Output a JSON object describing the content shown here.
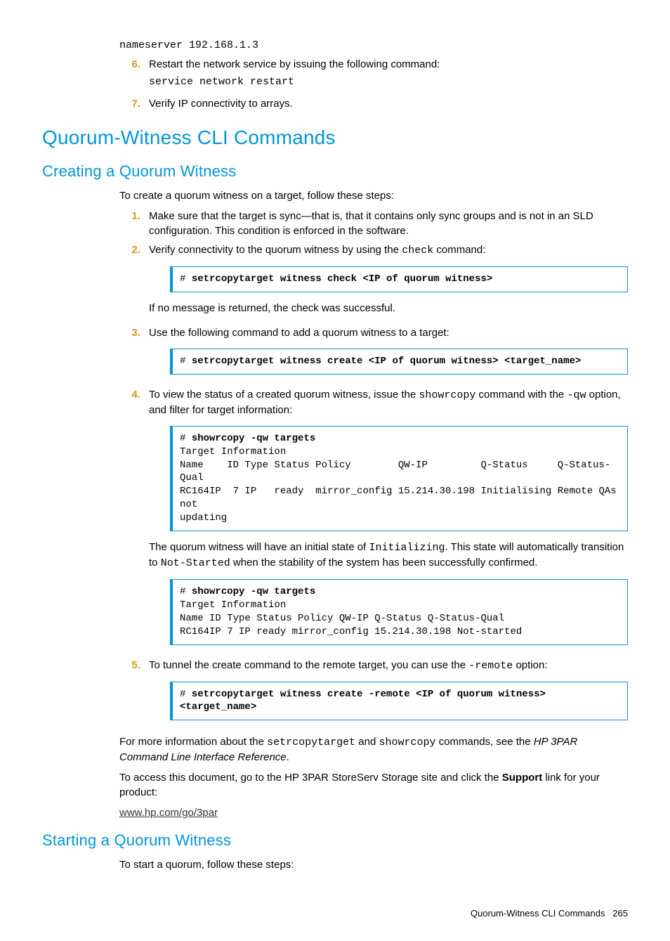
{
  "top": {
    "nameserver_line": "nameserver 192.168.1.3",
    "step6_num": "6.",
    "step6_text": "Restart the network service by issuing the following command:",
    "step6_code": "service network restart",
    "step7_num": "7.",
    "step7_text": "Verify IP connectivity to arrays."
  },
  "h1": "Quorum-Witness CLI Commands",
  "create": {
    "h2": "Creating a Quorum Witness",
    "intro": "To create a quorum witness on a target, follow these steps:",
    "s1_num": "1.",
    "s1_text": "Make sure that the target is sync—that is, that it contains only sync groups and is not in an SLD configuration. This condition is enforced in the software.",
    "s2_num": "2.",
    "s2_text_a": "Verify connectivity to the quorum witness by using the ",
    "s2_code": "check",
    "s2_text_b": " command:",
    "box1": "# setrcopytarget witness check <IP of quorum witness>",
    "s2_after": "If no message is returned, the check was successful.",
    "s3_num": "3.",
    "s3_text": "Use the following command to add a quorum witness to a target:",
    "box2": "# setrcopytarget witness create <IP of quorum witness> <target_name>",
    "s4_num": "4.",
    "s4_text_a": "To view the status of a created quorum witness, issue the ",
    "s4_code1": "showrcopy",
    "s4_text_b": " command with the ",
    "s4_code2": "-qw",
    "s4_text_c": " option, and filter for target information:",
    "box3_cmd": "# showrcopy -qw targets",
    "box3_body": "Target Information\nName    ID Type Status Policy        QW-IP         Q-Status     Q-Status-Qual\nRC164IP  7 IP   ready  mirror_config 15.214.30.198 Initialising Remote QAs not\nupdating",
    "s4_after_a": "The quorum witness will have an initial state of ",
    "s4_after_code1": "Initializing",
    "s4_after_b": ". This state will automatically transition to ",
    "s4_after_code2": "Not-Started",
    "s4_after_c": " when the stability of the system has been successfully confirmed.",
    "box4_cmd": "# showrcopy -qw targets",
    "box4_body": "Target Information\nName ID Type Status Policy QW-IP Q-Status Q-Status-Qual\nRC164IP 7 IP ready mirror_config 15.214.30.198 Not-started",
    "s5_num": "5.",
    "s5_text_a": "To tunnel the create command to the remote target, you can use the ",
    "s5_code": "-remote",
    "s5_text_b": " option:",
    "box5": "# setrcopytarget witness create -remote <IP of quorum witness> <target_name>",
    "more_a": "For more information about the ",
    "more_code1": "setrcopytarget",
    "more_b": " and ",
    "more_code2": "showrcopy",
    "more_c": " commands, see the ",
    "more_em": "HP 3PAR Command Line Interface Reference",
    "more_d": ".",
    "access_a": "To access this document, go to the HP 3PAR StoreServ Storage site and click the ",
    "access_bold": "Support",
    "access_b": " link for your product:",
    "link": "www.hp.com/go/3par"
  },
  "start": {
    "h2": "Starting a Quorum Witness",
    "intro": "To start a quorum, follow these steps:"
  },
  "footer": {
    "label": "Quorum-Witness CLI Commands",
    "page": "265"
  }
}
